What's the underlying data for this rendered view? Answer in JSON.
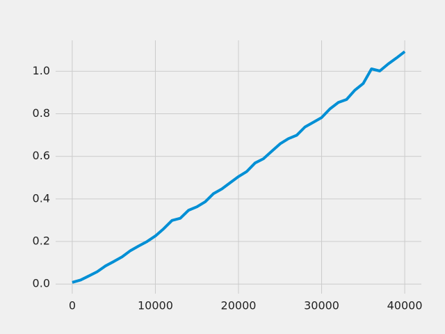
{
  "chart_data": {
    "type": "line",
    "title": "",
    "xlabel": "",
    "ylabel": "",
    "xlim": [
      -2000,
      42000
    ],
    "ylim": [
      -0.045,
      1.145
    ],
    "grid": true,
    "x_ticks": [
      0,
      10000,
      20000,
      30000,
      40000
    ],
    "x_tick_labels": [
      "0",
      "10000",
      "20000",
      "30000",
      "40000"
    ],
    "y_ticks": [
      0.0,
      0.2,
      0.4,
      0.6,
      0.8,
      1.0
    ],
    "y_tick_labels": [
      "0.0",
      "0.2",
      "0.4",
      "0.6",
      "0.8",
      "1.0"
    ],
    "series": [
      {
        "color": "#008fd5",
        "x": [
          0,
          1000,
          2000,
          3000,
          4000,
          5000,
          6000,
          7000,
          8000,
          9000,
          10000,
          11000,
          12000,
          13000,
          14000,
          15000,
          16000,
          17000,
          18000,
          19000,
          20000,
          21000,
          22000,
          23000,
          24000,
          25000,
          26000,
          27000,
          28000,
          29000,
          30000,
          31000,
          32000,
          33000,
          34000,
          35000,
          36000,
          37000,
          38000,
          39000,
          40000
        ],
        "y": [
          0.008,
          0.019,
          0.038,
          0.058,
          0.085,
          0.106,
          0.128,
          0.157,
          0.179,
          0.2,
          0.226,
          0.26,
          0.299,
          0.309,
          0.347,
          0.363,
          0.387,
          0.425,
          0.447,
          0.476,
          0.505,
          0.529,
          0.569,
          0.589,
          0.624,
          0.659,
          0.683,
          0.699,
          0.738,
          0.76,
          0.782,
          0.823,
          0.853,
          0.867,
          0.911,
          0.942,
          1.011,
          1.001,
          1.034,
          1.062,
          1.092
        ]
      }
    ]
  }
}
